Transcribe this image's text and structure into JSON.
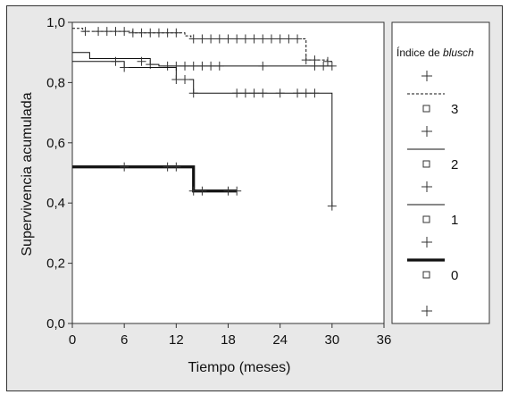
{
  "chart_data": {
    "type": "line",
    "subtype": "kaplan-meier",
    "xlabel": "Tiempo (meses)",
    "ylabel": "Supervivencia acumulada",
    "xlim": [
      0,
      36
    ],
    "ylim": [
      0,
      1.0
    ],
    "xticks": [
      "0",
      "6",
      "12",
      "18",
      "24",
      "30",
      "36"
    ],
    "yticks": [
      "0,0",
      "0,2",
      "0,4",
      "0,6",
      "0,8",
      "1,0"
    ],
    "grid": false,
    "legend": {
      "title_plain": "Índice de ",
      "title_italic": "blusch",
      "placement": "right",
      "entries": [
        "3",
        "2",
        "1",
        "0"
      ]
    },
    "series": [
      {
        "name": "3",
        "style": "dashed",
        "steps": [
          [
            0,
            0.98
          ],
          [
            1.2,
            0.97
          ],
          [
            7,
            0.965
          ],
          [
            13,
            0.955
          ],
          [
            13.7,
            0.945
          ],
          [
            27,
            0.875
          ],
          [
            29.5,
            0.87
          ]
        ],
        "end_x": 30,
        "censor": [
          [
            1.5,
            0.97
          ],
          [
            3,
            0.97
          ],
          [
            4,
            0.97
          ],
          [
            5,
            0.97
          ],
          [
            6,
            0.97
          ],
          [
            7,
            0.965
          ],
          [
            8,
            0.965
          ],
          [
            9,
            0.965
          ],
          [
            10,
            0.965
          ],
          [
            11,
            0.965
          ],
          [
            12,
            0.965
          ],
          [
            14,
            0.945
          ],
          [
            15,
            0.945
          ],
          [
            16,
            0.945
          ],
          [
            17,
            0.945
          ],
          [
            18,
            0.945
          ],
          [
            19,
            0.945
          ],
          [
            20,
            0.945
          ],
          [
            21,
            0.945
          ],
          [
            22,
            0.945
          ],
          [
            23,
            0.945
          ],
          [
            24,
            0.945
          ],
          [
            25,
            0.945
          ],
          [
            26,
            0.945
          ],
          [
            27,
            0.875
          ],
          [
            28,
            0.875
          ],
          [
            29.5,
            0.87
          ]
        ]
      },
      {
        "name": "2",
        "style": "thin",
        "steps": [
          [
            0,
            0.9
          ],
          [
            2,
            0.88
          ],
          [
            9,
            0.86
          ],
          [
            10,
            0.855
          ]
        ],
        "end_x": 30,
        "censor": [
          [
            9,
            0.86
          ],
          [
            11,
            0.855
          ],
          [
            12,
            0.855
          ],
          [
            13,
            0.855
          ],
          [
            14,
            0.855
          ],
          [
            15,
            0.855
          ],
          [
            16,
            0.855
          ],
          [
            17,
            0.855
          ],
          [
            22,
            0.855
          ],
          [
            28,
            0.855
          ],
          [
            29,
            0.855
          ],
          [
            30,
            0.855
          ]
        ]
      },
      {
        "name": "1",
        "style": "thin",
        "steps": [
          [
            0,
            0.87
          ],
          [
            6,
            0.85
          ],
          [
            12,
            0.81
          ],
          [
            14,
            0.765
          ],
          [
            30,
            0.39
          ]
        ],
        "end_x": 30,
        "censor": [
          [
            5,
            0.87
          ],
          [
            8,
            0.87
          ],
          [
            6,
            0.85
          ],
          [
            12,
            0.81
          ],
          [
            13,
            0.81
          ],
          [
            14,
            0.765
          ],
          [
            19,
            0.765
          ],
          [
            20,
            0.765
          ],
          [
            21,
            0.765
          ],
          [
            22,
            0.765
          ],
          [
            24,
            0.765
          ],
          [
            26,
            0.765
          ],
          [
            27,
            0.765
          ],
          [
            28,
            0.765
          ],
          [
            30,
            0.39
          ]
        ]
      },
      {
        "name": "0",
        "style": "thick",
        "steps": [
          [
            0,
            0.52
          ],
          [
            14,
            0.44
          ]
        ],
        "end_x": 19,
        "censor": [
          [
            6,
            0.52
          ],
          [
            11,
            0.52
          ],
          [
            12,
            0.52
          ],
          [
            14,
            0.44
          ],
          [
            15,
            0.44
          ],
          [
            18,
            0.44
          ],
          [
            19,
            0.44
          ]
        ]
      }
    ]
  }
}
